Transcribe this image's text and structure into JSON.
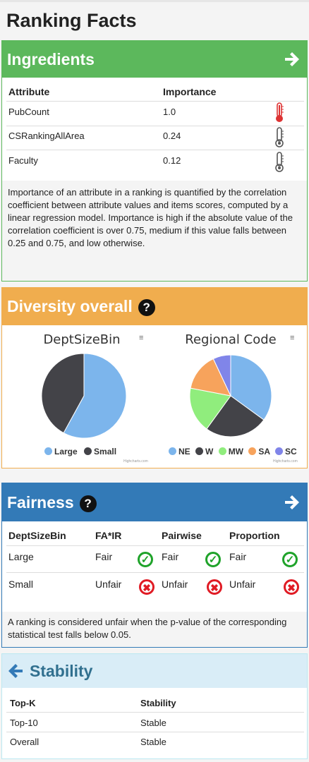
{
  "page_title": "Ranking Facts",
  "colors": {
    "green": "#5cb85c",
    "orange": "#f0ad4e",
    "blue": "#337ab7",
    "lightblue": "#d9edf7",
    "stability_title": "#31708f"
  },
  "ingredients": {
    "title": "Ingredients",
    "col_attribute": "Attribute",
    "col_importance": "Importance",
    "rows": [
      {
        "attribute": "PubCount",
        "importance": "1.0",
        "level": "high"
      },
      {
        "attribute": "CSRankingAllArea",
        "importance": "0.24",
        "level": "low"
      },
      {
        "attribute": "Faculty",
        "importance": "0.12",
        "level": "low"
      }
    ],
    "note": "Importance of an attribute in a ranking is quantified by the correlation coefficient between attribute values and items scores, computed by a linear regression model. Importance is high if the absolute value of the correlation coefficient is over 0.75, medium if this value falls between 0.25 and 0.75, and low otherwise."
  },
  "diversity": {
    "title": "Diversity overall",
    "charts": [
      {
        "title": "DeptSizeBin",
        "menu_icon": "menu-icon",
        "credit": "Highcharts.com",
        "slices": [
          {
            "name": "Large",
            "value": 58,
            "color": "#7cb5ec"
          },
          {
            "name": "Small",
            "value": 42,
            "color": "#434348"
          }
        ]
      },
      {
        "title": "Regional Code",
        "menu_icon": "menu-icon",
        "credit": "Highcharts.com",
        "slices": [
          {
            "name": "NE",
            "value": 35,
            "color": "#7cb5ec"
          },
          {
            "name": "W",
            "value": 25,
            "color": "#434348"
          },
          {
            "name": "MW",
            "value": 18,
            "color": "#90ed7d"
          },
          {
            "name": "SA",
            "value": 15,
            "color": "#f7a35c"
          },
          {
            "name": "SC",
            "value": 7,
            "color": "#8085e9"
          }
        ]
      }
    ]
  },
  "fairness": {
    "title": "Fairness",
    "headers": [
      "DeptSizeBin",
      "FA*IR",
      "Pairwise",
      "Proportion"
    ],
    "rows": [
      {
        "group": "Large",
        "fair": "Fair",
        "pairwise": "Fair",
        "proportion": "Fair",
        "status": "ok"
      },
      {
        "group": "Small",
        "fair": "Unfair",
        "pairwise": "Unfair",
        "proportion": "Unfair",
        "status": "bad"
      }
    ],
    "note": "A ranking is considered unfair when the p-value of the corresponding statistical test falls below 0.05."
  },
  "stability": {
    "title": "Stability",
    "col_topk": "Top-K",
    "col_stability": "Stability",
    "rows": [
      {
        "topk": "Top-10",
        "stability": "Stable"
      },
      {
        "topk": "Overall",
        "stability": "Stable"
      }
    ]
  }
}
